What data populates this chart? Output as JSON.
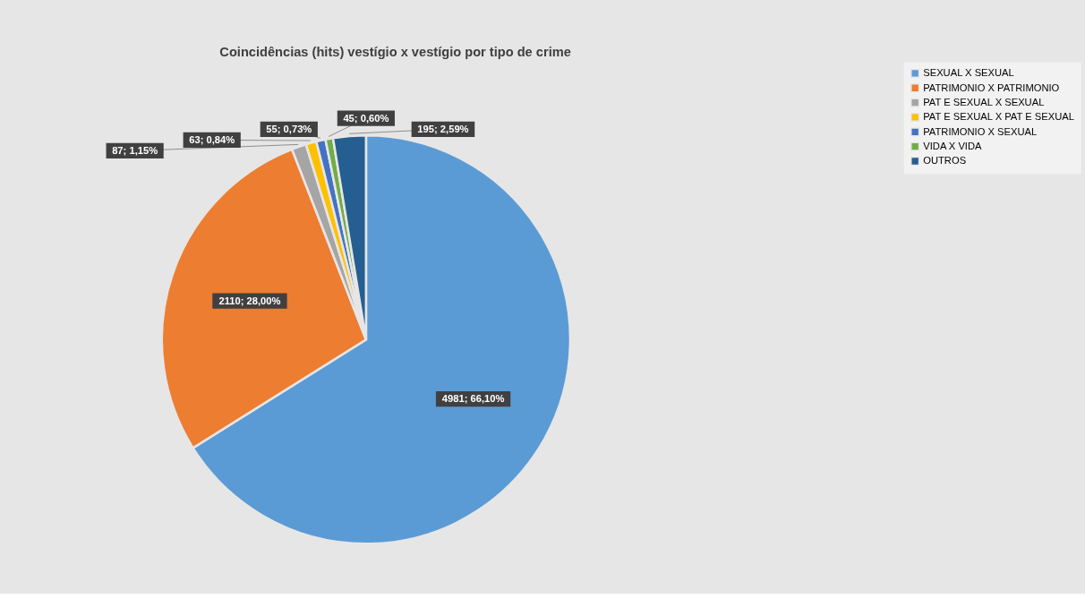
{
  "chart_data": {
    "type": "pie",
    "title": "Coincidências (hits) vestígio x vestígio por tipo de crime",
    "categories": [
      "SEXUAL X SEXUAL",
      "PATRIMONIO X PATRIMONIO",
      "PAT E SEXUAL X SEXUAL",
      "PAT E SEXUAL X PAT E SEXUAL",
      "PATRIMONIO X SEXUAL",
      "VIDA X VIDA",
      "OUTROS"
    ],
    "values": [
      4981,
      2110,
      87,
      63,
      55,
      45,
      195
    ],
    "colors": [
      "#5b9bd5",
      "#ed7d31",
      "#a5a5a5",
      "#ffc000",
      "#4472c4",
      "#70ad47",
      "#255e91"
    ],
    "value_labels": [
      "4981; 66,10%",
      "2110; 28,00%",
      "87; 1,15%",
      "63; 0,84%",
      "55; 0,73%",
      "45; 0,60%",
      "195; 2,59%"
    ],
    "legend": "right"
  }
}
